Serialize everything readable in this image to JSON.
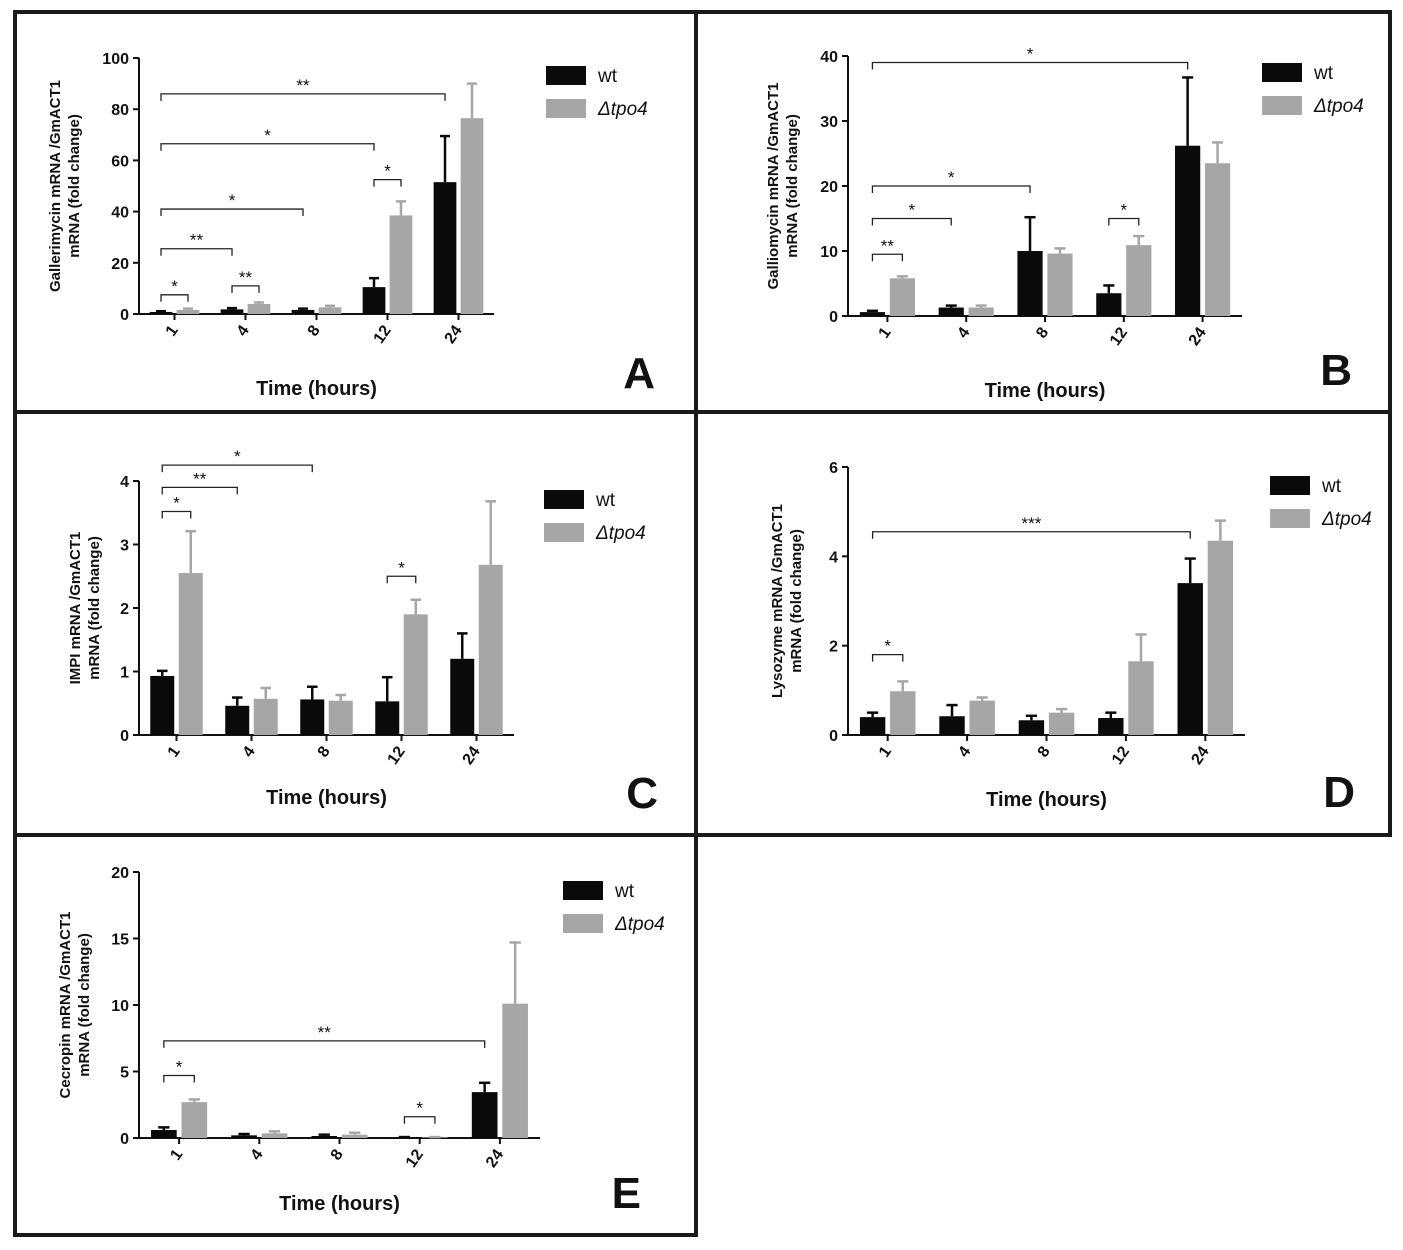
{
  "colors": {
    "wt": "#0a0a0a",
    "mutant": "#a6a6a6",
    "frame": "#1a1a1a",
    "axis": "#111111"
  },
  "chart_data": [
    {
      "type": "bar",
      "panel_letter": "A",
      "ylabel": [
        "Gallerimycin mRNA /GmACT1",
        "mRNA (fold change)"
      ],
      "xlabel": "Time (hours)",
      "categories": [
        "1",
        "4",
        "8",
        "12",
        "24"
      ],
      "ylim": [
        0,
        100
      ],
      "yticks": [
        0,
        20,
        40,
        60,
        80,
        100
      ],
      "legend_placement": "top-right",
      "series": [
        {
          "name": "wt",
          "values": [
            0.8,
            1.8,
            1.6,
            10.5,
            51.5
          ],
          "errors": [
            0.3,
            0.5,
            0.5,
            3.5,
            18
          ]
        },
        {
          "name": "Δtpo4",
          "values": [
            1.6,
            3.9,
            2.6,
            38.5,
            76.5
          ],
          "errors": [
            0.5,
            0.6,
            0.6,
            5.5,
            13.5
          ]
        }
      ],
      "significance": [
        {
          "from": 0,
          "to": 0,
          "label": "*",
          "y": 7.5
        },
        {
          "from": 0,
          "to": 1,
          "label": "**",
          "y": 25.5
        },
        {
          "from": 0,
          "to": 2,
          "label": "*",
          "y": 41
        },
        {
          "from": 0,
          "to": 3,
          "label": "*",
          "y": 66.5
        },
        {
          "from": 0,
          "to": 4,
          "label": "**",
          "y": 86
        },
        {
          "from": 1,
          "to": 1,
          "label": "**",
          "y": 11
        },
        {
          "from": 3,
          "to": 3,
          "label": "*",
          "y": 52.5
        }
      ]
    },
    {
      "type": "bar",
      "panel_letter": "B",
      "ylabel": [
        "Galliomycin mRNA /GmACT1",
        "mRNA (fold change)"
      ],
      "xlabel": "Time (hours)",
      "categories": [
        "1",
        "4",
        "8",
        "12",
        "24"
      ],
      "ylim": [
        0,
        40
      ],
      "yticks": [
        0,
        10,
        20,
        30,
        40
      ],
      "legend_placement": "top-right",
      "series": [
        {
          "name": "wt",
          "values": [
            0.6,
            1.3,
            10,
            3.5,
            26.2
          ],
          "errors": [
            0.2,
            0.3,
            5.2,
            1.2,
            10.5
          ]
        },
        {
          "name": "Δtpo4",
          "values": [
            5.8,
            1.3,
            9.6,
            10.9,
            23.5
          ],
          "errors": [
            0.3,
            0.3,
            0.8,
            1.4,
            3.2
          ]
        }
      ],
      "significance": [
        {
          "from": 0,
          "to": 0,
          "label": "**",
          "y": 9.5
        },
        {
          "from": 0,
          "to": 1,
          "label": "*",
          "y": 15
        },
        {
          "from": 0,
          "to": 2,
          "label": "*",
          "y": 20
        },
        {
          "from": 0,
          "to": 4,
          "label": "*",
          "y": 39
        },
        {
          "from": 3,
          "to": 3,
          "label": "*",
          "y": 15
        }
      ]
    },
    {
      "type": "bar",
      "panel_letter": "C",
      "ylabel": [
        "IMPI mRNA /GmACT1",
        "mRNA (fold change)"
      ],
      "xlabel": "Time (hours)",
      "categories": [
        "1",
        "4",
        "8",
        "12",
        "24"
      ],
      "ylim": [
        0,
        4
      ],
      "yticks": [
        0,
        1,
        2,
        3,
        4
      ],
      "legend_placement": "top-right",
      "series": [
        {
          "name": "wt",
          "values": [
            0.93,
            0.46,
            0.56,
            0.53,
            1.2
          ],
          "errors": [
            0.08,
            0.13,
            0.2,
            0.38,
            0.4
          ]
        },
        {
          "name": "Δtpo4",
          "values": [
            2.55,
            0.57,
            0.54,
            1.9,
            2.68
          ],
          "errors": [
            0.66,
            0.17,
            0.09,
            0.23,
            1.0
          ]
        }
      ],
      "significance": [
        {
          "from": 0,
          "to": 0,
          "label": "*",
          "y": 3.52
        },
        {
          "from": 0,
          "to": 1,
          "label": "**",
          "y": 3.9
        },
        {
          "from": 0,
          "to": 2,
          "label": "*",
          "y": 4.25
        },
        {
          "from": 3,
          "to": 3,
          "label": "*",
          "y": 2.5
        }
      ]
    },
    {
      "type": "bar",
      "panel_letter": "D",
      "ylabel": [
        "Lysozyme mRNA /GmACT1",
        "mRNA (fold change)"
      ],
      "xlabel": "Time (hours)",
      "categories": [
        "1",
        "4",
        "8",
        "12",
        "24"
      ],
      "ylim": [
        0,
        6
      ],
      "yticks": [
        0,
        2,
        4,
        6
      ],
      "legend_placement": "top-right",
      "series": [
        {
          "name": "wt",
          "values": [
            0.4,
            0.42,
            0.33,
            0.38,
            3.4
          ],
          "errors": [
            0.1,
            0.25,
            0.1,
            0.12,
            0.55
          ]
        },
        {
          "name": "Δtpo4",
          "values": [
            0.98,
            0.77,
            0.5,
            1.65,
            4.35
          ],
          "errors": [
            0.22,
            0.07,
            0.08,
            0.6,
            0.45
          ]
        }
      ],
      "significance": [
        {
          "from": 0,
          "to": 0,
          "label": "*",
          "y": 1.8
        },
        {
          "from": 0,
          "to": 4,
          "label": "***",
          "y": 4.55
        }
      ]
    },
    {
      "type": "bar",
      "panel_letter": "E",
      "ylabel": [
        "Cecropin mRNA /GmACT1",
        "mRNA (fold change)"
      ],
      "xlabel": "Time (hours)",
      "categories": [
        "1",
        "4",
        "8",
        "12",
        "24"
      ],
      "ylim": [
        0,
        20
      ],
      "yticks": [
        0,
        5,
        10,
        15,
        20
      ],
      "legend_placement": "top-right",
      "series": [
        {
          "name": "wt",
          "values": [
            0.6,
            0.2,
            0.15,
            0.05,
            3.45
          ],
          "errors": [
            0.2,
            0.1,
            0.1,
            0.02,
            0.7
          ]
        },
        {
          "name": "Δtpo4",
          "values": [
            2.7,
            0.35,
            0.25,
            0.05,
            10.1
          ],
          "errors": [
            0.2,
            0.15,
            0.15,
            0.02,
            4.6
          ]
        }
      ],
      "significance": [
        {
          "from": 0,
          "to": 0,
          "label": "*",
          "y": 4.7
        },
        {
          "from": 0,
          "to": 4,
          "label": "**",
          "y": 7.3
        },
        {
          "from": 3,
          "to": 3,
          "label": "*",
          "y": 1.6
        }
      ]
    }
  ]
}
